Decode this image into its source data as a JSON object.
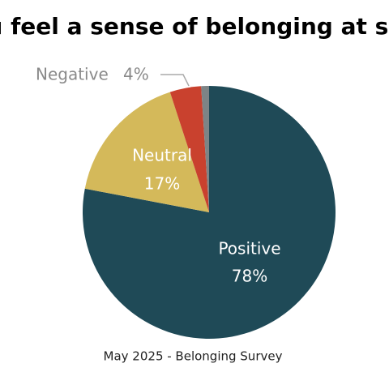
{
  "chart_data": {
    "type": "pie",
    "title": "ou feel a sense of belonging at sch",
    "categories": [
      "Positive",
      "Neutral",
      "Negative",
      null
    ],
    "values": [
      78,
      17,
      4,
      1
    ],
    "value_labels": [
      "78%",
      "17%",
      "4%",
      null
    ],
    "colors": [
      "#1f4a57",
      "#d4b95a",
      "#c9412e",
      "#7d8486"
    ],
    "caption": "May 2025 - Belonging Survey"
  }
}
